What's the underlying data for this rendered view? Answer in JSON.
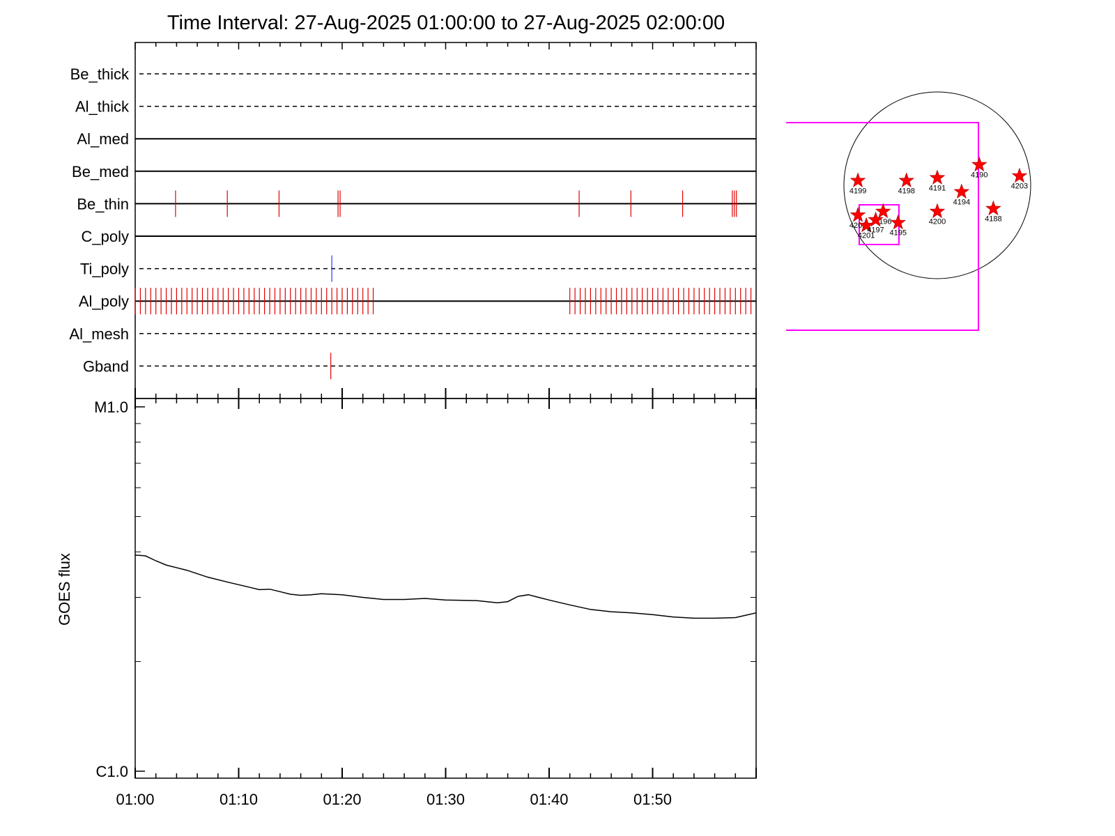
{
  "chart_data": [
    {
      "type": "timeline",
      "title": "Time Interval: 27-Aug-2025 01:00:00 to 27-Aug-2025 02:00:00",
      "x_range_minutes": [
        0,
        60
      ],
      "channels": [
        {
          "name": "Be_thick",
          "line_style": "dashed",
          "events": []
        },
        {
          "name": "Al_thick",
          "line_style": "dashed",
          "events": []
        },
        {
          "name": "Al_med",
          "line_style": "solid",
          "events": []
        },
        {
          "name": "Be_med",
          "line_style": "solid",
          "events": []
        },
        {
          "name": "Be_thin",
          "line_style": "solid",
          "event_color": "#e00000",
          "events": [
            3.9,
            8.9,
            13.9,
            19.6,
            19.8,
            42.9,
            47.9,
            52.9,
            57.7,
            57.9,
            58.1
          ]
        },
        {
          "name": "C_poly",
          "line_style": "solid",
          "events": []
        },
        {
          "name": "Ti_poly",
          "line_style": "dashed",
          "event_color": "#3030ff",
          "events": [
            19.0
          ]
        },
        {
          "name": "Al_poly",
          "line_style": "solid",
          "event_color": "#e00000",
          "event_groups": [
            {
              "start": 0.0,
              "end": 23.1,
              "step": 0.5
            },
            {
              "start": 42.0,
              "end": 59.8,
              "step": 0.5
            }
          ]
        },
        {
          "name": "Al_mesh",
          "line_style": "dashed",
          "events": []
        },
        {
          "name": "Gband",
          "line_style": "dashed",
          "event_color": "#e00000",
          "events": [
            18.9
          ]
        }
      ]
    },
    {
      "type": "line",
      "ylabel": "GOES flux",
      "y_scale": "log",
      "y_range": [
        1e-06,
        1e-05
      ],
      "y_tick_labels": [
        {
          "value": 1e-05,
          "label": "M1.0"
        },
        {
          "value": 1e-06,
          "label": "C1.0"
        }
      ],
      "x_range_minutes": [
        0,
        60
      ],
      "x_tick_labels": [
        {
          "value": 0,
          "label": "01:00"
        },
        {
          "value": 10,
          "label": "01:10"
        },
        {
          "value": 20,
          "label": "01:20"
        },
        {
          "value": 30,
          "label": "01:30"
        },
        {
          "value": 40,
          "label": "01:40"
        },
        {
          "value": 50,
          "label": "01:50"
        }
      ],
      "series": [
        {
          "color": "#000000",
          "points": [
            [
              0,
              3.92e-06
            ],
            [
              1,
              3.9e-06
            ],
            [
              2,
              3.78e-06
            ],
            [
              3,
              3.68e-06
            ],
            [
              5,
              3.56e-06
            ],
            [
              7,
              3.41e-06
            ],
            [
              9,
              3.3e-06
            ],
            [
              11,
              3.2e-06
            ],
            [
              12,
              3.15e-06
            ],
            [
              13,
              3.16e-06
            ],
            [
              14,
              3.11e-06
            ],
            [
              15,
              3.06e-06
            ],
            [
              16,
              3.04e-06
            ],
            [
              17,
              3.05e-06
            ],
            [
              18,
              3.07e-06
            ],
            [
              20,
              3.05e-06
            ],
            [
              22,
              3e-06
            ],
            [
              24,
              2.96e-06
            ],
            [
              26,
              2.96e-06
            ],
            [
              28,
              2.98e-06
            ],
            [
              30,
              2.95e-06
            ],
            [
              33,
              2.94e-06
            ],
            [
              35,
              2.9e-06
            ],
            [
              36,
              2.92e-06
            ],
            [
              37,
              3.02e-06
            ],
            [
              38,
              3.05e-06
            ],
            [
              39,
              3e-06
            ],
            [
              40,
              2.95e-06
            ],
            [
              42,
              2.86e-06
            ],
            [
              44,
              2.78e-06
            ],
            [
              46,
              2.74e-06
            ],
            [
              48,
              2.72e-06
            ],
            [
              50,
              2.69e-06
            ],
            [
              52,
              2.65e-06
            ],
            [
              54,
              2.63e-06
            ],
            [
              56,
              2.63e-06
            ],
            [
              58,
              2.64e-06
            ],
            [
              59,
              2.68e-06
            ],
            [
              60,
              2.72e-06
            ]
          ]
        }
      ]
    },
    {
      "type": "scatter",
      "subject": "solar disk map",
      "disk_color": "#000000",
      "marker_color": "#ff0000",
      "box_color": "#ff00ff",
      "points": [
        {
          "label": "4199",
          "x": -0.85,
          "y": 0.05
        },
        {
          "label": "4198",
          "x": -0.33,
          "y": 0.05
        },
        {
          "label": "4191",
          "x": 0.0,
          "y": 0.08
        },
        {
          "label": "4190",
          "x": 0.45,
          "y": 0.22
        },
        {
          "label": "4203",
          "x": 0.88,
          "y": 0.1
        },
        {
          "label": "4194",
          "x": 0.26,
          "y": -0.07
        },
        {
          "label": "4188",
          "x": 0.6,
          "y": -0.25
        },
        {
          "label": "4200",
          "x": 0.0,
          "y": -0.28
        },
        {
          "label": "4202",
          "x": -0.85,
          "y": -0.32
        },
        {
          "label": "4201",
          "x": -0.76,
          "y": -0.43
        },
        {
          "label": "4196",
          "x": -0.58,
          "y": -0.28
        },
        {
          "label": "4197",
          "x": -0.66,
          "y": -0.37
        },
        {
          "label": "4195",
          "x": -0.42,
          "y": -0.4
        }
      ]
    }
  ]
}
